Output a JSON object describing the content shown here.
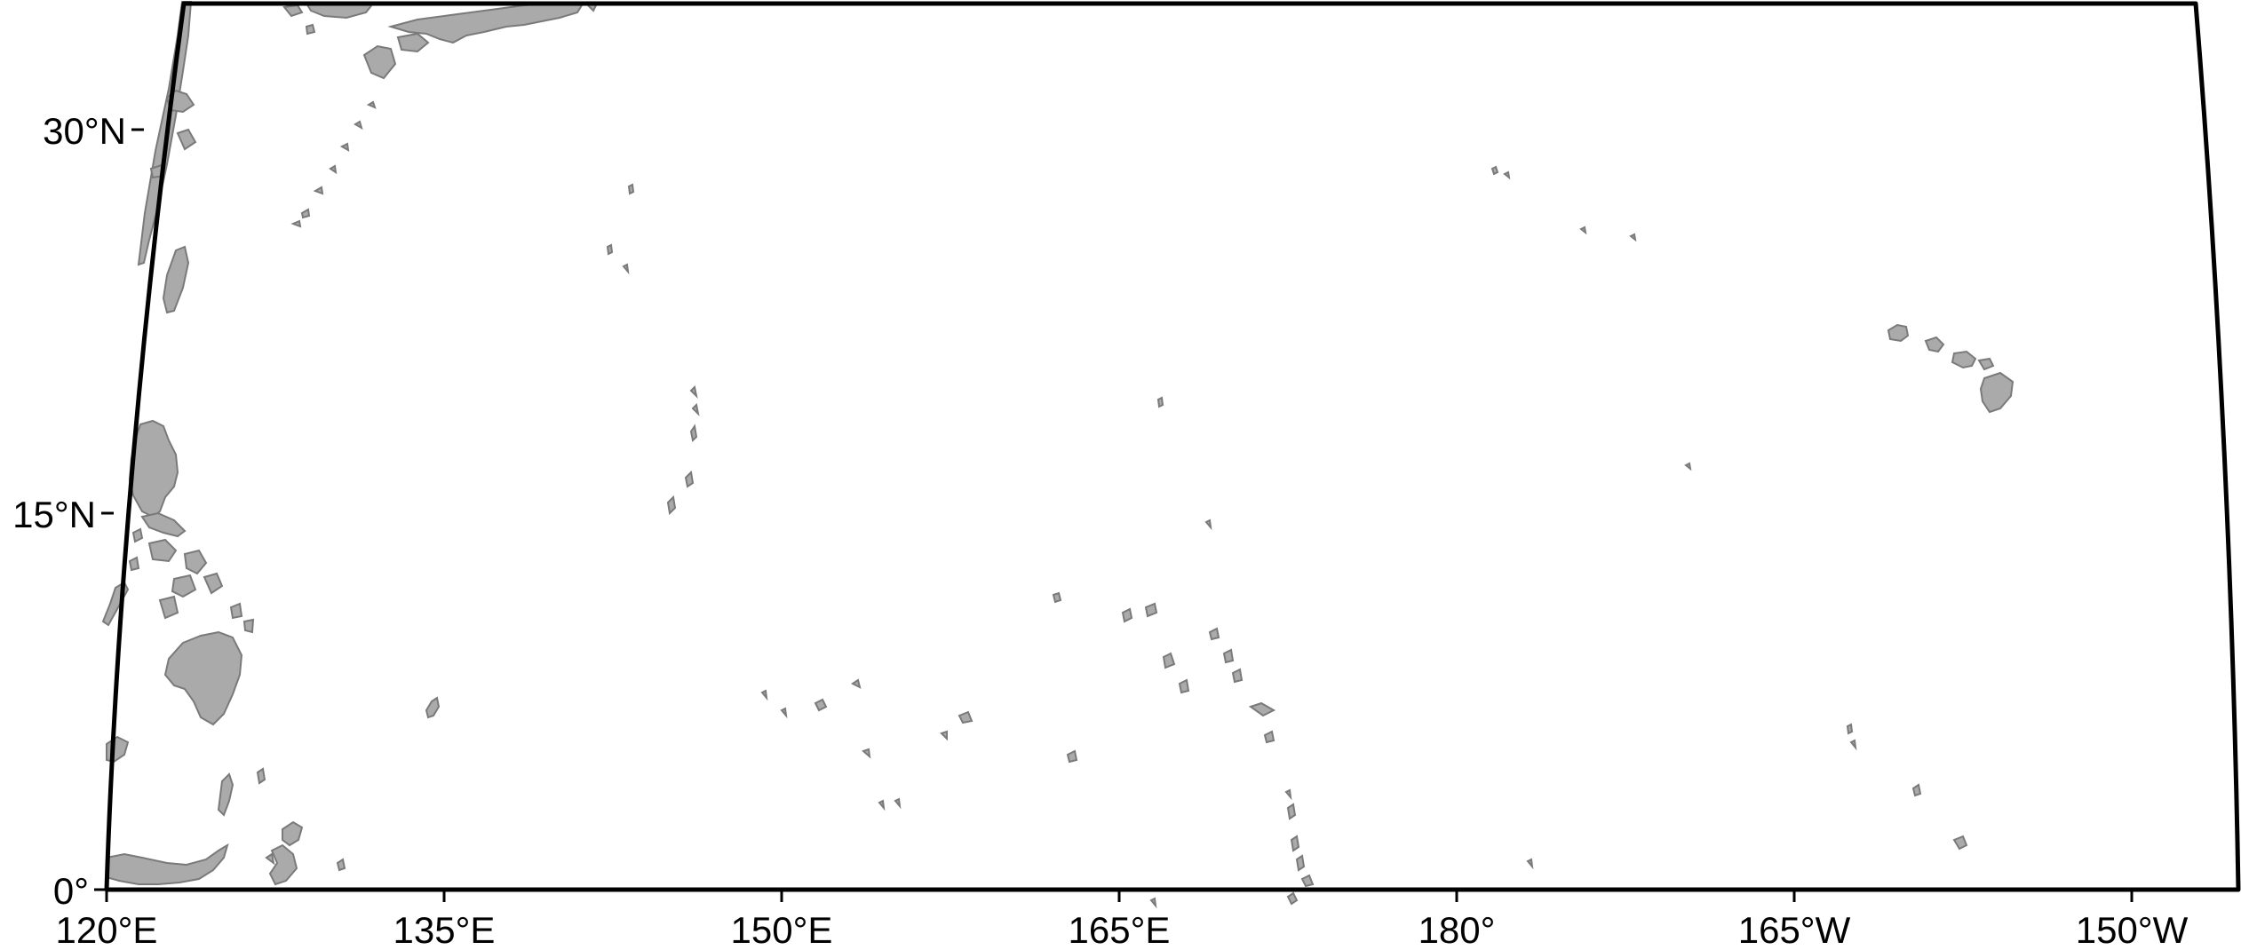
{
  "map": {
    "region": "Western and Central Pacific Ocean",
    "projection": "conic",
    "longitude_range": [
      "120°E",
      "150°W"
    ],
    "latitude_range": [
      "0°",
      "35°N"
    ]
  },
  "axes": {
    "latitude_ticks": [
      {
        "id": "lat-0",
        "label": "0°"
      },
      {
        "id": "lat-15",
        "label": "15°N"
      },
      {
        "id": "lat-30",
        "label": "30°N"
      }
    ],
    "longitude_ticks": [
      {
        "id": "lon-120e",
        "label": "120°E"
      },
      {
        "id": "lon-135e",
        "label": "135°E"
      },
      {
        "id": "lon-150e",
        "label": "150°E"
      },
      {
        "id": "lon-165e",
        "label": "165°E"
      },
      {
        "id": "lon-180",
        "label": "180°"
      },
      {
        "id": "lon-165w",
        "label": "165°W"
      },
      {
        "id": "lon-150w",
        "label": "150°W"
      }
    ]
  },
  "features": {
    "landmasses": [
      "Japan",
      "Ryukyu Islands",
      "Taiwan",
      "Philippines",
      "Borneo",
      "Sulawesi",
      "Halmahera",
      "Hawaiian Islands",
      "Mariana Islands",
      "Marshall Islands",
      "Caroline Islands"
    ]
  },
  "colors": {
    "land": "#aaaaaa",
    "coast": "#7a7a7a",
    "frame": "#000000",
    "ocean": "#ffffff"
  }
}
